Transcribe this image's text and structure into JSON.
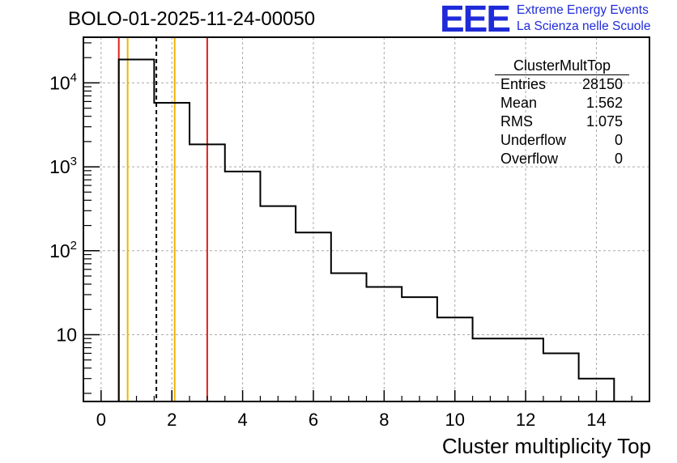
{
  "title": "BOLO-01-2025-11-24-00050",
  "logo": {
    "mark": "EEE",
    "line1": "Extreme Energy Events",
    "line2": "La Scienza nelle Scuole",
    "color": "#1f2bd8"
  },
  "stats": {
    "name": "ClusterMultTop",
    "rows": [
      {
        "label": "Entries",
        "value": "28150"
      },
      {
        "label": "Mean",
        "value": "1.562"
      },
      {
        "label": "RMS",
        "value": "1.075"
      },
      {
        "label": "Underflow",
        "value": "0"
      },
      {
        "label": "Overflow",
        "value": "0"
      }
    ]
  },
  "chart_data": {
    "type": "histogram",
    "title": "BOLO-01-2025-11-24-00050",
    "xlabel": "Cluster multiplicity Top",
    "ylabel": "",
    "yscale": "log",
    "xlim": [
      -0.5,
      15.5
    ],
    "ylim": [
      1.6,
      35000
    ],
    "grid": true,
    "bin_edges": [
      0.5,
      1.5,
      2.5,
      3.5,
      4.5,
      5.5,
      6.5,
      7.5,
      8.5,
      9.5,
      10.5,
      11.5,
      12.5,
      13.5,
      14.5
    ],
    "values": [
      19000,
      5800,
      1850,
      880,
      340,
      165,
      54,
      37,
      28,
      16,
      9,
      9,
      6,
      3
    ],
    "x_ticks": [
      0,
      2,
      4,
      6,
      8,
      10,
      12,
      14
    ],
    "x_tick_labels": [
      "0",
      "2",
      "4",
      "6",
      "8",
      "10",
      "12",
      "14"
    ],
    "y_major_ticks": [
      {
        "value": 10,
        "base": "10",
        "exp": ""
      },
      {
        "value": 100,
        "base": "10",
        "exp": "2"
      },
      {
        "value": 1000,
        "base": "10",
        "exp": "3"
      },
      {
        "value": 10000,
        "base": "10",
        "exp": "4"
      }
    ],
    "vlines": [
      {
        "x": 0.5,
        "color": "#e0201b",
        "style": "solid"
      },
      {
        "x": 0.75,
        "color": "#f0b400",
        "style": "solid"
      },
      {
        "x": 1.562,
        "color": "#000000",
        "style": "dashed"
      },
      {
        "x": 2.08,
        "color": "#f0b400",
        "style": "solid"
      },
      {
        "x": 3.0,
        "color": "#e0201b",
        "style": "solid"
      }
    ]
  }
}
